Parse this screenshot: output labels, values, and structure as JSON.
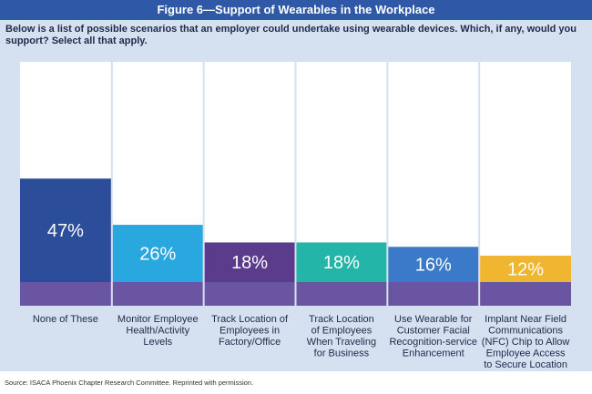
{
  "figure": {
    "title": "Figure 6—Support of Wearables in the Workplace",
    "question": "Below is a list of possible scenarios that an employer could undertake using wearable devices. Which, if any, would you support? Select all that apply.",
    "source": "Source:  ISACA Phoenix Chapter Research Committee. Reprinted with permission."
  },
  "colors": {
    "header": "#2f59a6",
    "panel": "#d5e1f0",
    "column_bg": "#ffffff",
    "base_band": "#6a55a3"
  },
  "chart_data": {
    "type": "bar",
    "ylim": [
      0,
      100
    ],
    "grid": false,
    "categories": [
      "None of These",
      "Monitor Employee Health/Activity Levels",
      "Track Location of Employees in Factory/Office",
      "Track Location of Employees When Traveling for Business",
      "Use Wearable for Customer Facial Recognition-service Enhancement",
      "Implant Near Field Communications (NFC) Chip to Allow Employee Access to Secure Location"
    ],
    "category_lines": [
      [
        "None of These"
      ],
      [
        "Monitor Employee",
        "Health/Activity",
        "Levels"
      ],
      [
        "Track Location of",
        "Employees in",
        "Factory/Office"
      ],
      [
        "Track Location",
        "of Employees",
        "When Traveling",
        "for Business"
      ],
      [
        "Use Wearable for",
        "Customer Facial",
        "Recognition-service",
        "Enhancement"
      ],
      [
        "Implant Near Field",
        "Communications",
        "(NFC) Chip to Allow",
        "Employee Access",
        "to Secure Location"
      ]
    ],
    "values": [
      47,
      26,
      18,
      18,
      16,
      12
    ],
    "labels": [
      "47%",
      "26%",
      "18%",
      "18%",
      "16%",
      "12%"
    ],
    "bar_colors": [
      "#2c4d9a",
      "#29a8e0",
      "#5b3b8c",
      "#22b5a8",
      "#3a7ac8",
      "#f0b630"
    ]
  }
}
